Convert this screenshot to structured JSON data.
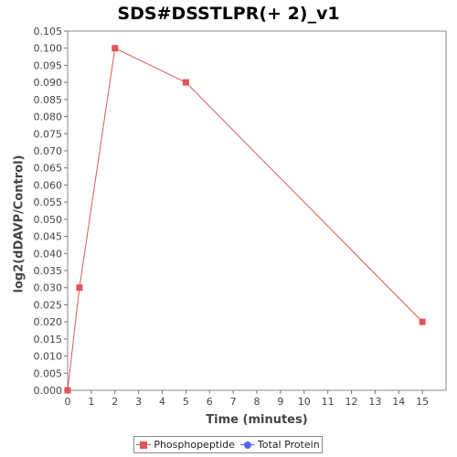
{
  "chart_data": {
    "type": "line",
    "title": "SDS#DSSTLPR(+ 2)_v1",
    "xlabel": "Time (minutes)",
    "ylabel": "log2(dDAVP/Control)",
    "xlim": [
      0,
      16
    ],
    "ylim": [
      0,
      0.105
    ],
    "x_ticks": [
      0,
      1,
      2,
      3,
      4,
      5,
      6,
      7,
      8,
      9,
      10,
      11,
      12,
      13,
      14,
      15
    ],
    "y_ticks": [
      "0.000",
      "0.005",
      "0.010",
      "0.015",
      "0.020",
      "0.025",
      "0.030",
      "0.035",
      "0.040",
      "0.045",
      "0.050",
      "0.055",
      "0.060",
      "0.065",
      "0.070",
      "0.075",
      "0.080",
      "0.085",
      "0.090",
      "0.095",
      "0.100",
      "0.105"
    ],
    "grid": false,
    "legend_position": "bottom",
    "series": [
      {
        "name": "Phosphopeptide",
        "color": "#e05555",
        "marker": "square",
        "x": [
          0,
          0.5,
          2,
          5,
          15
        ],
        "y": [
          0.0,
          0.03,
          0.1,
          0.09,
          0.02
        ]
      },
      {
        "name": "Total Protein",
        "color": "#5566ee",
        "marker": "circle",
        "x": [],
        "y": []
      }
    ]
  }
}
